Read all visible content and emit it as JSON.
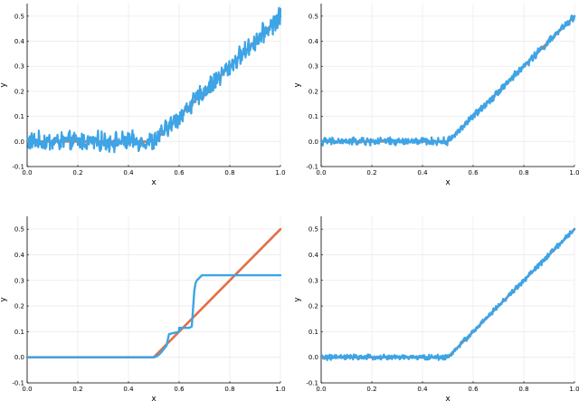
{
  "colors": {
    "reference": "#e26f46",
    "estimate": "#3da4e6",
    "grid": "#ebebeb",
    "axis": "#000000"
  },
  "chart_data": [
    {
      "type": "line",
      "xlabel": "x",
      "ylabel": "y",
      "xlim": [
        0,
        1
      ],
      "ylim": [
        -0.1,
        0.55
      ],
      "xticks": [
        "0.0",
        "0.2",
        "0.4",
        "0.6",
        "0.8",
        "1.0"
      ],
      "yticks": [
        "-0.1",
        "0.0",
        "0.1",
        "0.2",
        "0.3",
        "0.4",
        "0.5"
      ],
      "grid": true,
      "series": [
        {
          "role": "reference",
          "x": [
            0,
            0.5,
            1.0
          ],
          "y": [
            0,
            0,
            0.5
          ]
        },
        {
          "role": "estimate",
          "kind": "noisy",
          "x": [
            0,
            0.5,
            1.0
          ],
          "y": [
            0,
            0,
            0.5
          ],
          "noise_amplitude": 0.03
        }
      ]
    },
    {
      "type": "line",
      "xlabel": "x",
      "ylabel": "y",
      "xlim": [
        0,
        1
      ],
      "ylim": [
        -0.1,
        0.55
      ],
      "xticks": [
        "0.0",
        "0.2",
        "0.4",
        "0.6",
        "0.8",
        "1.0"
      ],
      "yticks": [
        "-0.1",
        "0.0",
        "0.1",
        "0.2",
        "0.3",
        "0.4",
        "0.5"
      ],
      "grid": true,
      "series": [
        {
          "role": "reference",
          "x": [
            0,
            0.5,
            1.0
          ],
          "y": [
            0,
            0,
            0.5
          ]
        },
        {
          "role": "estimate",
          "kind": "noisy",
          "x": [
            0,
            0.5,
            1.0
          ],
          "y": [
            0,
            0,
            0.5
          ],
          "noise_amplitude": 0.012
        }
      ]
    },
    {
      "type": "line",
      "xlabel": "x",
      "ylabel": "y",
      "xlim": [
        0,
        1
      ],
      "ylim": [
        -0.1,
        0.55
      ],
      "xticks": [
        "0.0",
        "0.2",
        "0.4",
        "0.6",
        "0.8",
        "1.0"
      ],
      "yticks": [
        "-0.1",
        "0.0",
        "0.1",
        "0.2",
        "0.3",
        "0.4",
        "0.5"
      ],
      "grid": true,
      "series": [
        {
          "role": "reference",
          "x": [
            0,
            0.5,
            1.0
          ],
          "y": [
            0,
            0,
            0.5
          ]
        },
        {
          "role": "estimate",
          "kind": "step",
          "x": [
            0,
            0.5,
            0.51,
            0.52,
            0.53,
            0.55,
            0.56,
            0.6,
            0.6,
            0.64,
            0.65,
            0.66,
            0.665,
            0.67,
            0.69,
            0.7,
            1.0
          ],
          "y": [
            0,
            0,
            0.003,
            0.01,
            0.02,
            0.045,
            0.09,
            0.1,
            0.115,
            0.115,
            0.12,
            0.26,
            0.29,
            0.3,
            0.32,
            0.32,
            0.32
          ]
        }
      ]
    },
    {
      "type": "line",
      "xlabel": "x",
      "ylabel": "y",
      "xlim": [
        0,
        1
      ],
      "ylim": [
        -0.1,
        0.55
      ],
      "xticks": [
        "0.0",
        "0.2",
        "0.4",
        "0.6",
        "0.8",
        "1.0"
      ],
      "yticks": [
        "-0.1",
        "0.0",
        "0.1",
        "0.2",
        "0.3",
        "0.4",
        "0.5"
      ],
      "grid": true,
      "series": [
        {
          "role": "reference",
          "x": [
            0,
            0.5,
            1.0
          ],
          "y": [
            0,
            0,
            0.5
          ]
        },
        {
          "role": "estimate",
          "kind": "noisy",
          "x": [
            0,
            0.5,
            1.0
          ],
          "y": [
            0,
            0,
            0.5
          ],
          "noise_amplitude": 0.008
        }
      ]
    }
  ]
}
